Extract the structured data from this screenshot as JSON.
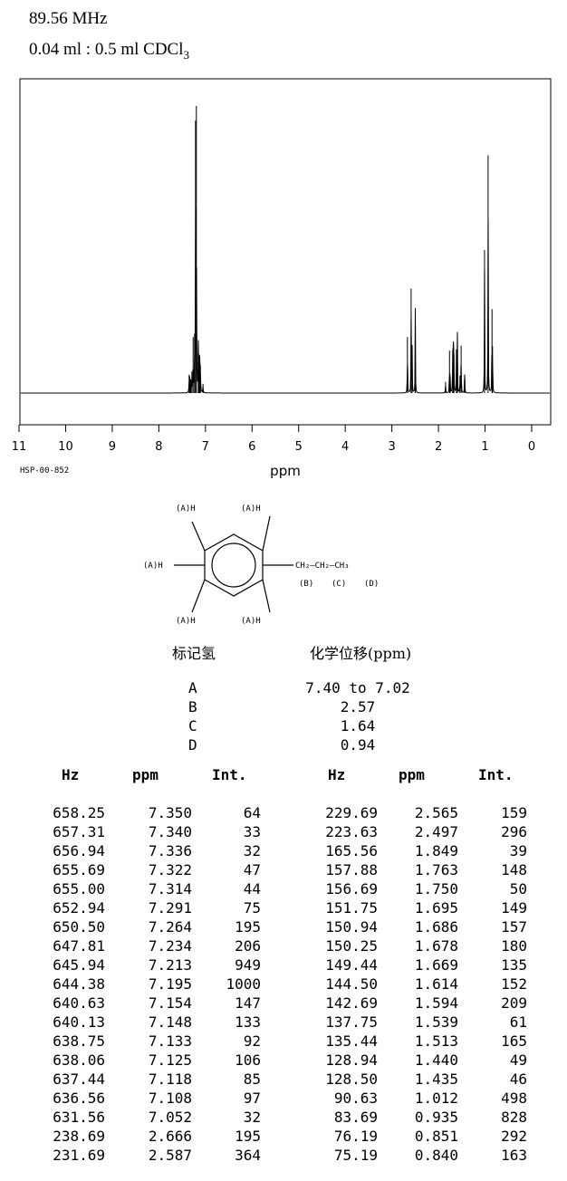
{
  "header": {
    "frequency": "89.56 MHz",
    "solvent_prefix": "0.04 ml : 0.5 ml CDCl",
    "solvent_sub": "3"
  },
  "code": "HSP-00-852",
  "chart_data": {
    "type": "line",
    "xlabel": "ppm",
    "xlim": [
      11,
      0
    ],
    "x_ticks": [
      "11",
      "10",
      "9",
      "8",
      "7",
      "6",
      "5",
      "4",
      "3",
      "2",
      "1",
      "0"
    ],
    "peaks_ppm_int": [
      [
        7.35,
        64
      ],
      [
        7.34,
        33
      ],
      [
        7.336,
        32
      ],
      [
        7.322,
        47
      ],
      [
        7.314,
        44
      ],
      [
        7.291,
        75
      ],
      [
        7.264,
        195
      ],
      [
        7.234,
        206
      ],
      [
        7.213,
        949
      ],
      [
        7.195,
        1000
      ],
      [
        7.154,
        147
      ],
      [
        7.148,
        133
      ],
      [
        7.133,
        92
      ],
      [
        7.125,
        106
      ],
      [
        7.118,
        85
      ],
      [
        7.108,
        97
      ],
      [
        7.052,
        32
      ],
      [
        2.666,
        195
      ],
      [
        2.587,
        364
      ],
      [
        2.565,
        159
      ],
      [
        2.497,
        296
      ],
      [
        1.849,
        39
      ],
      [
        1.763,
        148
      ],
      [
        1.75,
        50
      ],
      [
        1.695,
        149
      ],
      [
        1.686,
        157
      ],
      [
        1.678,
        180
      ],
      [
        1.669,
        135
      ],
      [
        1.614,
        152
      ],
      [
        1.594,
        209
      ],
      [
        1.539,
        61
      ],
      [
        1.513,
        165
      ],
      [
        1.44,
        49
      ],
      [
        1.435,
        46
      ],
      [
        1.012,
        498
      ],
      [
        0.935,
        828
      ],
      [
        0.851,
        292
      ],
      [
        0.84,
        163
      ]
    ]
  },
  "structure": {
    "h_label": "(A)H",
    "chain": "CH₂—CH₂—CH₃",
    "chain_labels": [
      "(B)",
      "(C)",
      "(D)"
    ]
  },
  "assignment": {
    "col1": "标记氢",
    "col2": "化学位移(ppm)",
    "rows": [
      {
        "label": "A",
        "value": "7.40 to 7.02"
      },
      {
        "label": "B",
        "value": "2.57"
      },
      {
        "label": "C",
        "value": "1.64"
      },
      {
        "label": "D",
        "value": "0.94"
      }
    ]
  },
  "peak_table": {
    "headers": [
      "Hz",
      "ppm",
      "Int."
    ],
    "rows": [
      [
        "658.25",
        "7.350",
        "64"
      ],
      [
        "657.31",
        "7.340",
        "33"
      ],
      [
        "656.94",
        "7.336",
        "32"
      ],
      [
        "655.69",
        "7.322",
        "47"
      ],
      [
        "655.00",
        "7.314",
        "44"
      ],
      [
        "652.94",
        "7.291",
        "75"
      ],
      [
        "650.50",
        "7.264",
        "195"
      ],
      [
        "647.81",
        "7.234",
        "206"
      ],
      [
        "645.94",
        "7.213",
        "949"
      ],
      [
        "644.38",
        "7.195",
        "1000"
      ],
      [
        "640.63",
        "7.154",
        "147"
      ],
      [
        "640.13",
        "7.148",
        "133"
      ],
      [
        "638.75",
        "7.133",
        "92"
      ],
      [
        "638.06",
        "7.125",
        "106"
      ],
      [
        "637.44",
        "7.118",
        "85"
      ],
      [
        "636.56",
        "7.108",
        "97"
      ],
      [
        "631.56",
        "7.052",
        "32"
      ],
      [
        "238.69",
        "2.666",
        "195"
      ],
      [
        "231.69",
        "2.587",
        "364"
      ],
      [
        "229.69",
        "2.565",
        "159"
      ],
      [
        "223.63",
        "2.497",
        "296"
      ],
      [
        "165.56",
        "1.849",
        "39"
      ],
      [
        "157.88",
        "1.763",
        "148"
      ],
      [
        "156.69",
        "1.750",
        "50"
      ],
      [
        "151.75",
        "1.695",
        "149"
      ],
      [
        "150.94",
        "1.686",
        "157"
      ],
      [
        "150.25",
        "1.678",
        "180"
      ],
      [
        "149.44",
        "1.669",
        "135"
      ],
      [
        "144.50",
        "1.614",
        "152"
      ],
      [
        "142.69",
        "1.594",
        "209"
      ],
      [
        "137.75",
        "1.539",
        "61"
      ],
      [
        "135.44",
        "1.513",
        "165"
      ],
      [
        "128.94",
        "1.440",
        "49"
      ],
      [
        "128.50",
        "1.435",
        "46"
      ],
      [
        "90.63",
        "1.012",
        "498"
      ],
      [
        "83.69",
        "0.935",
        "828"
      ],
      [
        "76.19",
        "0.851",
        "292"
      ],
      [
        "75.19",
        "0.840",
        "163"
      ]
    ]
  }
}
